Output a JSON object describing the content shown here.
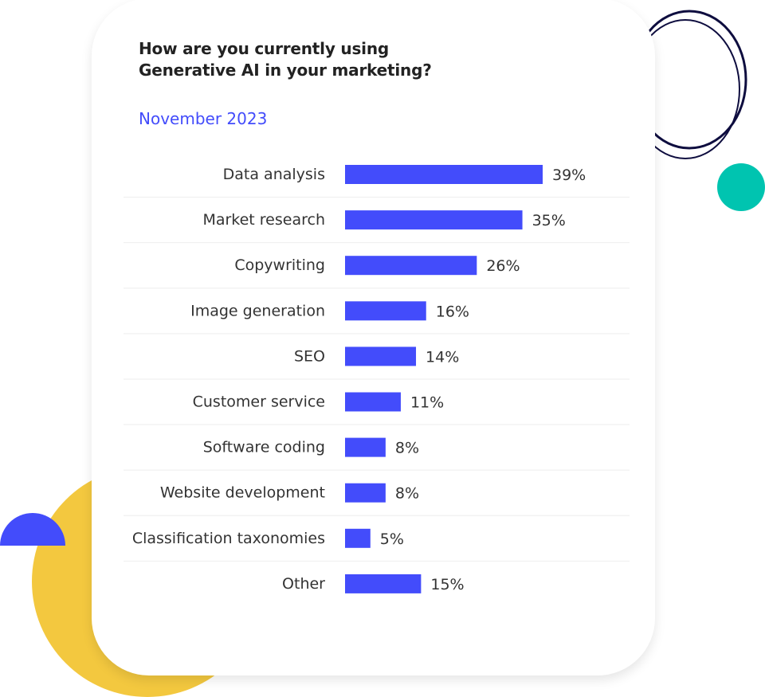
{
  "colors": {
    "bar": "#434cfb",
    "accent_text": "#434cfb",
    "yellow": "#f3c83f",
    "teal": "#00c4b0",
    "ring": "#0e0d3f",
    "blue_semicircle": "#434cfb"
  },
  "chart_data": {
    "type": "bar",
    "orientation": "horizontal",
    "title": "How are you currently using Generative AI in your marketing?",
    "title_lines": [
      "How are you currently using",
      "Generative AI in your marketing?"
    ],
    "subtitle": "November 2023",
    "categories": [
      "Data analysis",
      "Market research",
      "Copywriting",
      "Image generation",
      "SEO",
      "Customer service",
      "Software coding",
      "Website development",
      "Classification taxonomies",
      "Other"
    ],
    "values": [
      39,
      35,
      26,
      16,
      14,
      11,
      8,
      8,
      5,
      15
    ],
    "value_labels": [
      "39%",
      "35%",
      "26%",
      "16%",
      "14%",
      "11%",
      "8%",
      "8%",
      "5%",
      "15%"
    ],
    "unit": "%",
    "grid": false,
    "legend": "none"
  }
}
